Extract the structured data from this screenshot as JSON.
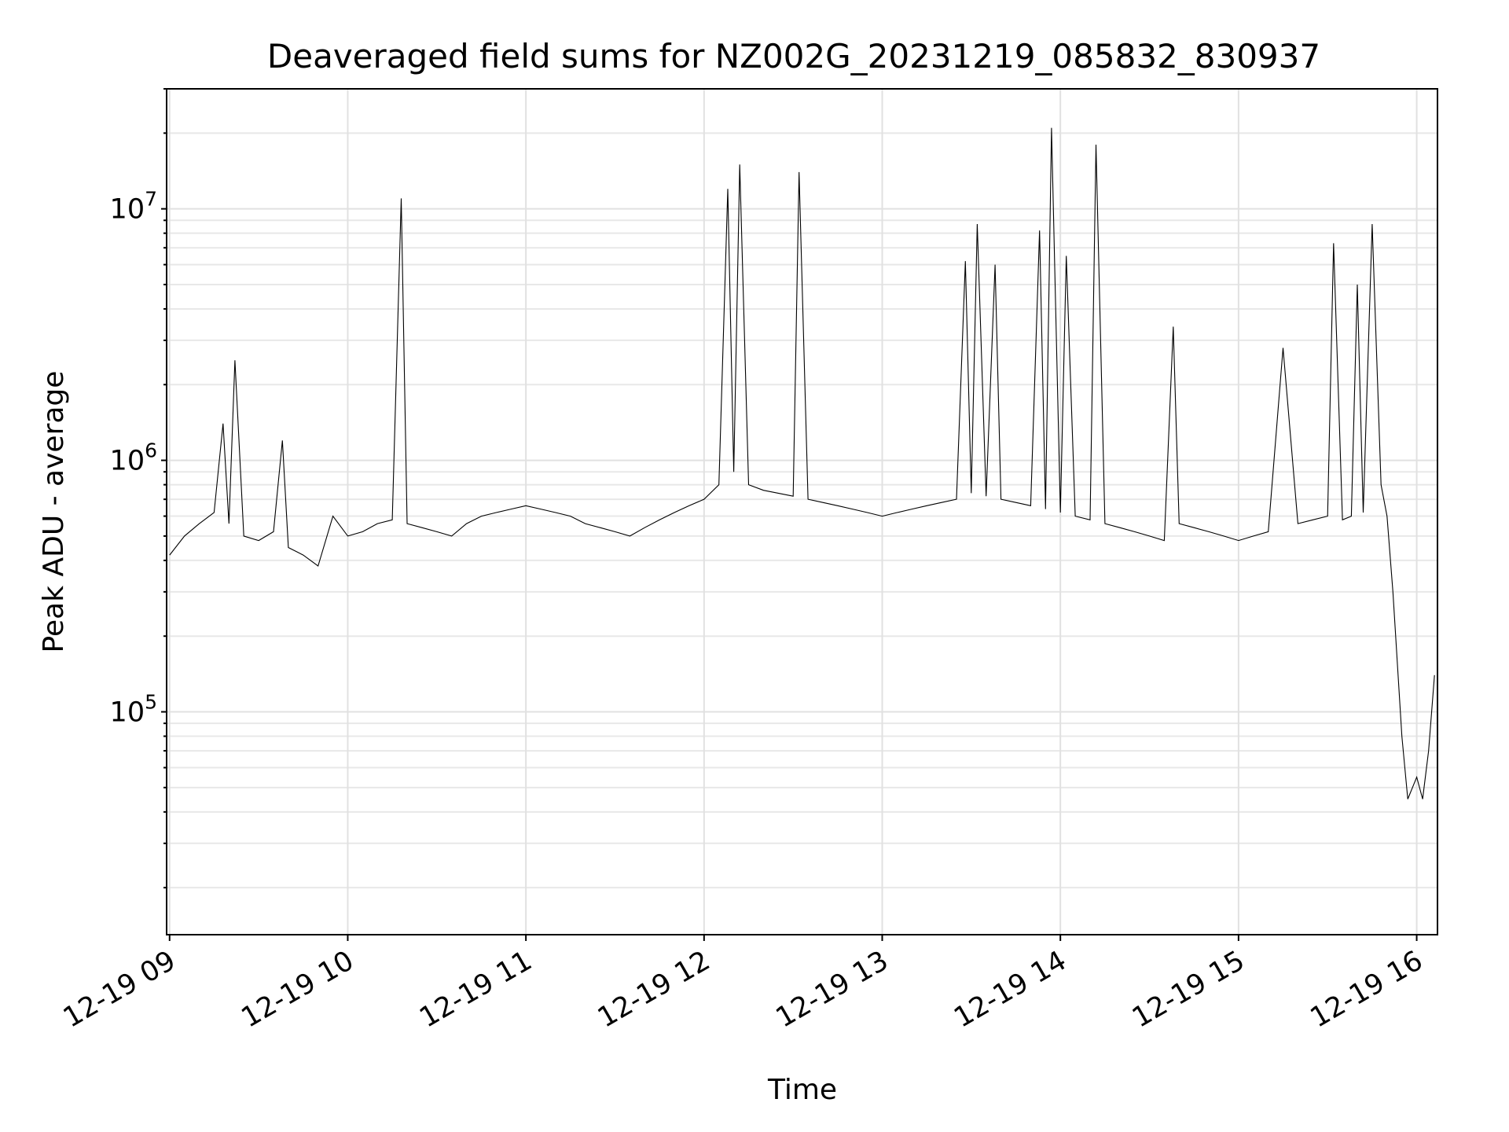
{
  "chart_data": {
    "type": "line",
    "title": "Deaveraged field sums for NZ002G_20231219_085832_830937",
    "xlabel": "Time",
    "ylabel": "Peak ADU - average",
    "y_scale": "log",
    "ylim": [
      13000,
      30000000
    ],
    "xlim": [
      "2023-12-19 08:59",
      "2023-12-19 16:07"
    ],
    "x_ticks": [
      "12-19 09",
      "12-19 10",
      "12-19 11",
      "12-19 12",
      "12-19 13",
      "12-19 14",
      "12-19 15",
      "12-19 16"
    ],
    "y_ticks": [
      {
        "base": "10",
        "exp": "5",
        "value": 100000
      },
      {
        "base": "10",
        "exp": "6",
        "value": 1000000
      },
      {
        "base": "10",
        "exp": "7",
        "value": 10000000
      }
    ],
    "grid": true,
    "legend": "none",
    "line_color": "#000000",
    "series": [
      {
        "x": [
          "2023-12-19 09:00",
          "2023-12-19 09:05",
          "2023-12-19 09:10",
          "2023-12-19 09:15",
          "2023-12-19 09:18",
          "2023-12-19 09:20",
          "2023-12-19 09:22",
          "2023-12-19 09:25",
          "2023-12-19 09:30",
          "2023-12-19 09:35",
          "2023-12-19 09:38",
          "2023-12-19 09:40",
          "2023-12-19 09:45",
          "2023-12-19 09:50",
          "2023-12-19 09:55",
          "2023-12-19 10:00",
          "2023-12-19 10:05",
          "2023-12-19 10:10",
          "2023-12-19 10:15",
          "2023-12-19 10:18",
          "2023-12-19 10:20",
          "2023-12-19 10:25",
          "2023-12-19 10:30",
          "2023-12-19 10:35",
          "2023-12-19 10:40",
          "2023-12-19 10:45",
          "2023-12-19 10:50",
          "2023-12-19 10:55",
          "2023-12-19 11:00",
          "2023-12-19 11:05",
          "2023-12-19 11:10",
          "2023-12-19 11:15",
          "2023-12-19 11:20",
          "2023-12-19 11:25",
          "2023-12-19 11:30",
          "2023-12-19 11:35",
          "2023-12-19 11:40",
          "2023-12-19 11:45",
          "2023-12-19 11:50",
          "2023-12-19 11:55",
          "2023-12-19 12:00",
          "2023-12-19 12:05",
          "2023-12-19 12:08",
          "2023-12-19 12:10",
          "2023-12-19 12:12",
          "2023-12-19 12:15",
          "2023-12-19 12:20",
          "2023-12-19 12:25",
          "2023-12-19 12:30",
          "2023-12-19 12:32",
          "2023-12-19 12:35",
          "2023-12-19 12:40",
          "2023-12-19 12:45",
          "2023-12-19 12:50",
          "2023-12-19 12:55",
          "2023-12-19 13:00",
          "2023-12-19 13:05",
          "2023-12-19 13:10",
          "2023-12-19 13:15",
          "2023-12-19 13:20",
          "2023-12-19 13:25",
          "2023-12-19 13:28",
          "2023-12-19 13:30",
          "2023-12-19 13:32",
          "2023-12-19 13:35",
          "2023-12-19 13:38",
          "2023-12-19 13:40",
          "2023-12-19 13:45",
          "2023-12-19 13:50",
          "2023-12-19 13:53",
          "2023-12-19 13:55",
          "2023-12-19 13:57",
          "2023-12-19 14:00",
          "2023-12-19 14:02",
          "2023-12-19 14:05",
          "2023-12-19 14:10",
          "2023-12-19 14:12",
          "2023-12-19 14:15",
          "2023-12-19 14:20",
          "2023-12-19 14:25",
          "2023-12-19 14:30",
          "2023-12-19 14:35",
          "2023-12-19 14:38",
          "2023-12-19 14:40",
          "2023-12-19 14:45",
          "2023-12-19 14:50",
          "2023-12-19 14:55",
          "2023-12-19 15:00",
          "2023-12-19 15:05",
          "2023-12-19 15:10",
          "2023-12-19 15:15",
          "2023-12-19 15:20",
          "2023-12-19 15:25",
          "2023-12-19 15:30",
          "2023-12-19 15:32",
          "2023-12-19 15:35",
          "2023-12-19 15:38",
          "2023-12-19 15:40",
          "2023-12-19 15:42",
          "2023-12-19 15:45",
          "2023-12-19 15:48",
          "2023-12-19 15:50",
          "2023-12-19 15:52",
          "2023-12-19 15:55",
          "2023-12-19 15:57",
          "2023-12-19 16:00",
          "2023-12-19 16:02",
          "2023-12-19 16:04",
          "2023-12-19 16:06"
        ],
        "values": [
          420000,
          500000,
          560000,
          620000,
          1400000,
          560000,
          2500000,
          500000,
          480000,
          520000,
          1200000,
          450000,
          420000,
          380000,
          600000,
          500000,
          520000,
          560000,
          580000,
          11000000,
          560000,
          540000,
          520000,
          500000,
          560000,
          600000,
          620000,
          640000,
          660000,
          640000,
          620000,
          600000,
          560000,
          540000,
          520000,
          500000,
          540000,
          580000,
          620000,
          660000,
          700000,
          800000,
          12000000,
          900000,
          15000000,
          800000,
          760000,
          740000,
          720000,
          14000000,
          700000,
          680000,
          660000,
          640000,
          620000,
          600000,
          620000,
          640000,
          660000,
          680000,
          700000,
          6200000,
          740000,
          8700000,
          720000,
          6000000,
          700000,
          680000,
          660000,
          8200000,
          640000,
          21000000,
          620000,
          6500000,
          600000,
          580000,
          18000000,
          560000,
          540000,
          520000,
          500000,
          480000,
          3400000,
          560000,
          540000,
          520000,
          500000,
          480000,
          500000,
          520000,
          2800000,
          560000,
          580000,
          600000,
          7300000,
          580000,
          600000,
          5000000,
          620000,
          8700000,
          800000,
          600000,
          300000,
          80000,
          45000,
          55000,
          45000,
          70000,
          140000
        ]
      }
    ]
  }
}
